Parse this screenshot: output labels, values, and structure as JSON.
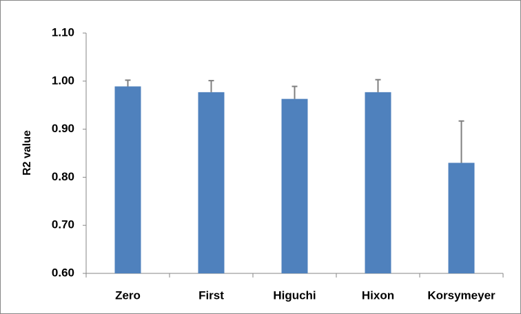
{
  "chart_data": {
    "type": "bar",
    "y_label": "R2 value",
    "categories": [
      "Zero",
      "First",
      "Higuchi",
      "Hixon",
      "Korsymeyer"
    ],
    "values": [
      0.989,
      0.977,
      0.963,
      0.977,
      0.83
    ],
    "errors": [
      0.013,
      0.024,
      0.026,
      0.026,
      0.087
    ],
    "color": "#4f81bd",
    "error_color": "#7f7f7f",
    "ylim": [
      0.6,
      1.1
    ],
    "yticks": [
      {
        "value": 0.6,
        "label": "0.60"
      },
      {
        "value": 0.7,
        "label": "0.70"
      },
      {
        "value": 0.8,
        "label": "0.80"
      },
      {
        "value": 0.9,
        "label": "0.90"
      },
      {
        "value": 1.0,
        "label": "1.00"
      },
      {
        "value": 1.1,
        "label": "1.10"
      }
    ],
    "grid": false
  }
}
